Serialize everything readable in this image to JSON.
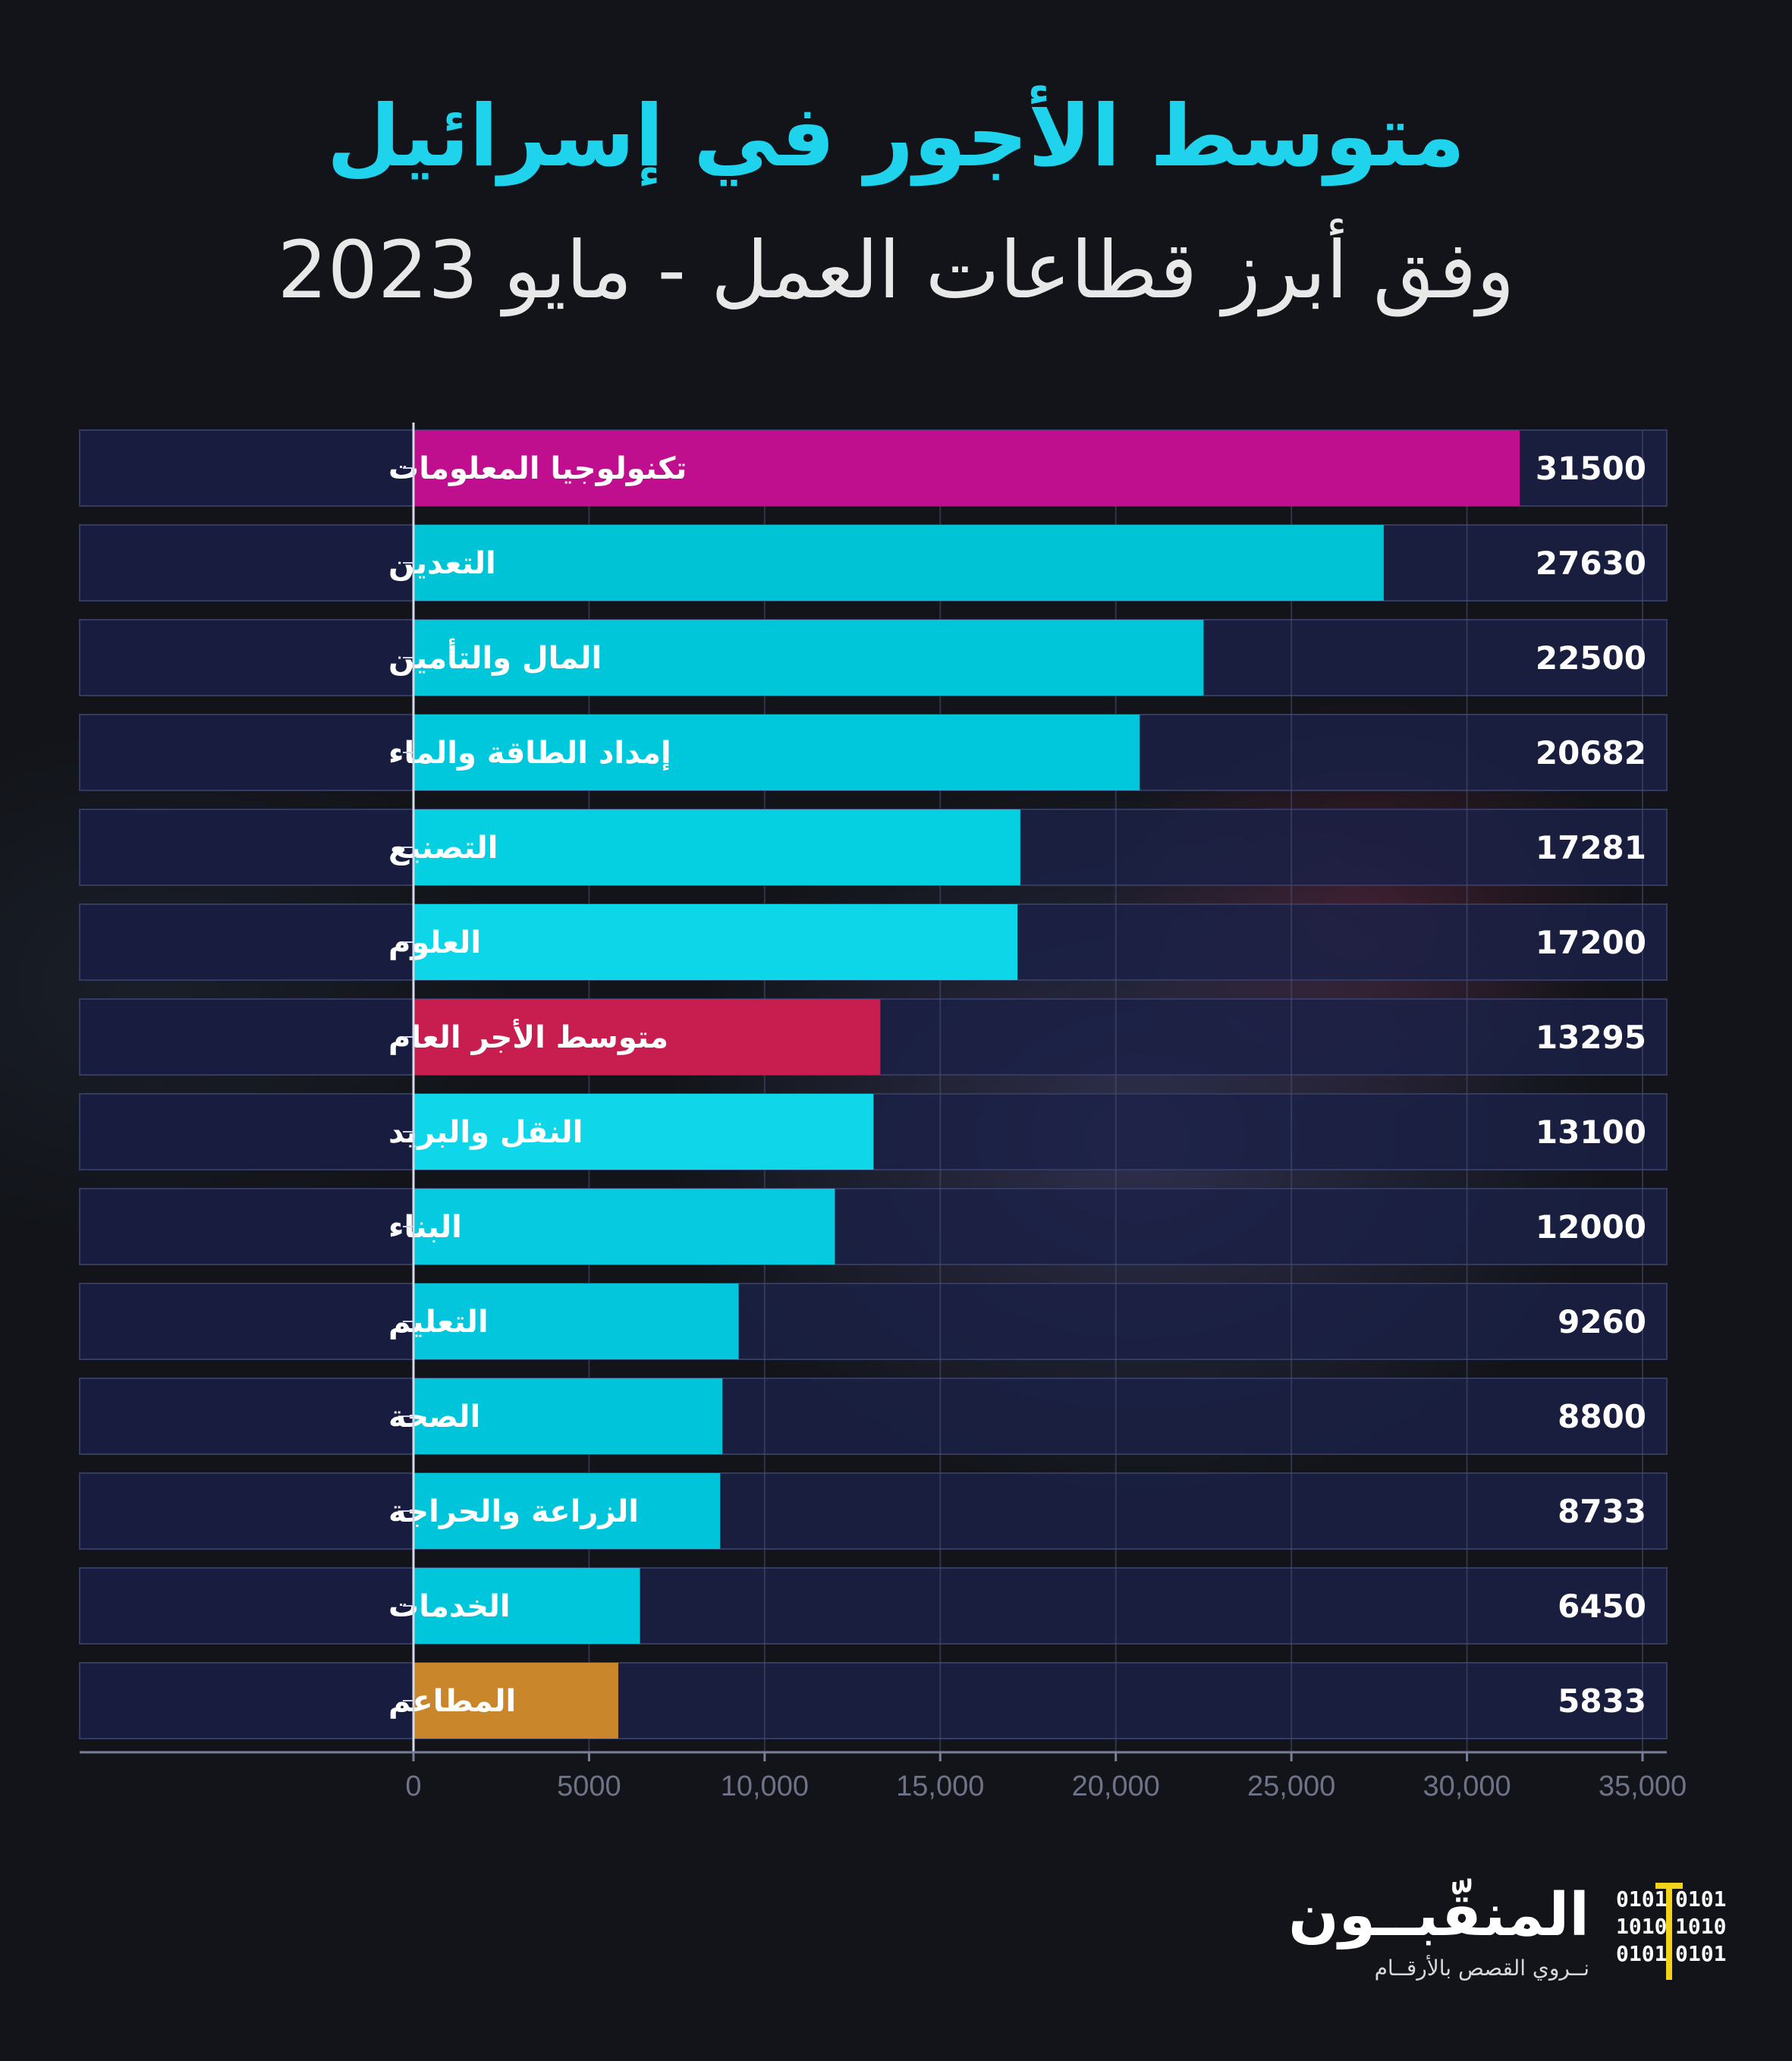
{
  "title": "متوسط الأجور في إسرائيل",
  "subtitle": "وفق أبرز قطاعات العمل - مايو 2023",
  "chart_data": {
    "type": "bar",
    "orientation": "horizontal",
    "title": "متوسط الأجور في إسرائيل",
    "subtitle": "وفق أبرز قطاعات العمل - مايو 2023",
    "categories": [
      "تكنولوجيا المعلومات",
      "التعدين",
      "المال والتأمين",
      "إمداد الطاقة والماء",
      "التصنيع",
      "العلوم",
      "متوسط الأجر العام",
      "النقل والبريد",
      "البناء",
      "التعليم",
      "الصحة",
      "الزراعة والحراجة",
      "الخدمات",
      "المطاعم"
    ],
    "values": [
      31500,
      27630,
      22500,
      20682,
      17281,
      17200,
      13295,
      13100,
      12000,
      9260,
      8800,
      8733,
      6450,
      5833
    ],
    "value_labels": [
      "31500",
      "27630",
      "22500",
      "20682",
      "17281",
      "17200",
      "13295",
      "13100",
      "12000",
      "9260",
      "8800",
      "8733",
      "6450",
      "5833"
    ],
    "bar_colors": [
      "#bf0f8e",
      "#00c3d5",
      "#00c6d9",
      "#00c8dc",
      "#05d0e2",
      "#0ed6e9",
      "#c81d4f",
      "#10d6ea",
      "#06cadf",
      "#03c6dc",
      "#00c4da",
      "#00c5da",
      "#00c6dc",
      "#c9862a"
    ],
    "xlim": [
      0,
      35000
    ],
    "xticks": [
      0,
      5000,
      10000,
      15000,
      20000,
      25000,
      30000,
      35000
    ],
    "xtick_labels": [
      "0",
      "5000",
      "10,000",
      "15,000",
      "20,000",
      "25,000",
      "30,000",
      "35,000"
    ],
    "grid": true
  },
  "brand": {
    "name": "المنقّبــون",
    "tagline": "نــروي القصص بالأرقــام",
    "binary_left": [
      "0101",
      "1010",
      "0101"
    ],
    "binary_right": [
      "0101",
      "1010",
      "0101"
    ]
  }
}
